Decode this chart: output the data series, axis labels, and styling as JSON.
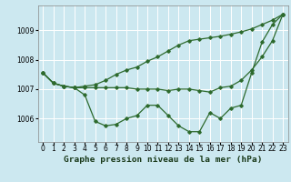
{
  "hours": [
    0,
    1,
    2,
    3,
    4,
    5,
    6,
    7,
    8,
    9,
    10,
    11,
    12,
    13,
    14,
    15,
    16,
    17,
    18,
    19,
    20,
    21,
    22,
    23
  ],
  "line_dip": [
    1007.55,
    1007.2,
    1007.1,
    1007.05,
    1006.8,
    1005.9,
    1005.75,
    1005.8,
    1006.0,
    1006.1,
    1006.45,
    1006.45,
    1006.1,
    1005.75,
    1005.55,
    1005.55,
    1006.2,
    1006.0,
    1006.35,
    1006.45,
    1007.55,
    1008.6,
    1009.2,
    1009.55
  ],
  "line_rise": [
    1007.55,
    1007.2,
    1007.1,
    1007.05,
    1007.1,
    1007.15,
    1007.3,
    1007.5,
    1007.65,
    1007.75,
    1007.95,
    1008.1,
    1008.3,
    1008.5,
    1008.65,
    1008.7,
    1008.75,
    1008.8,
    1008.87,
    1008.95,
    1009.05,
    1009.2,
    1009.35,
    1009.55
  ],
  "line_flat": [
    1007.55,
    1007.2,
    1007.1,
    1007.05,
    1007.05,
    1007.05,
    1007.05,
    1007.05,
    1007.05,
    1007.0,
    1007.0,
    1007.0,
    1006.95,
    1007.0,
    1007.0,
    1006.95,
    1006.9,
    1007.05,
    1007.1,
    1007.3,
    1007.65,
    1008.1,
    1008.65,
    1009.55
  ],
  "line_color": "#2d6a2d",
  "bg_color": "#cce8f0",
  "grid_color": "#ffffff",
  "title": "Graphe pression niveau de la mer (hPa)",
  "ylim_min": 1005.2,
  "ylim_max": 1009.85,
  "yticks": [
    1006,
    1007,
    1008,
    1009
  ],
  "marker": "D",
  "marker_size": 1.8,
  "linewidth": 0.9,
  "title_fontsize": 6.8,
  "tick_fontsize": 5.5
}
